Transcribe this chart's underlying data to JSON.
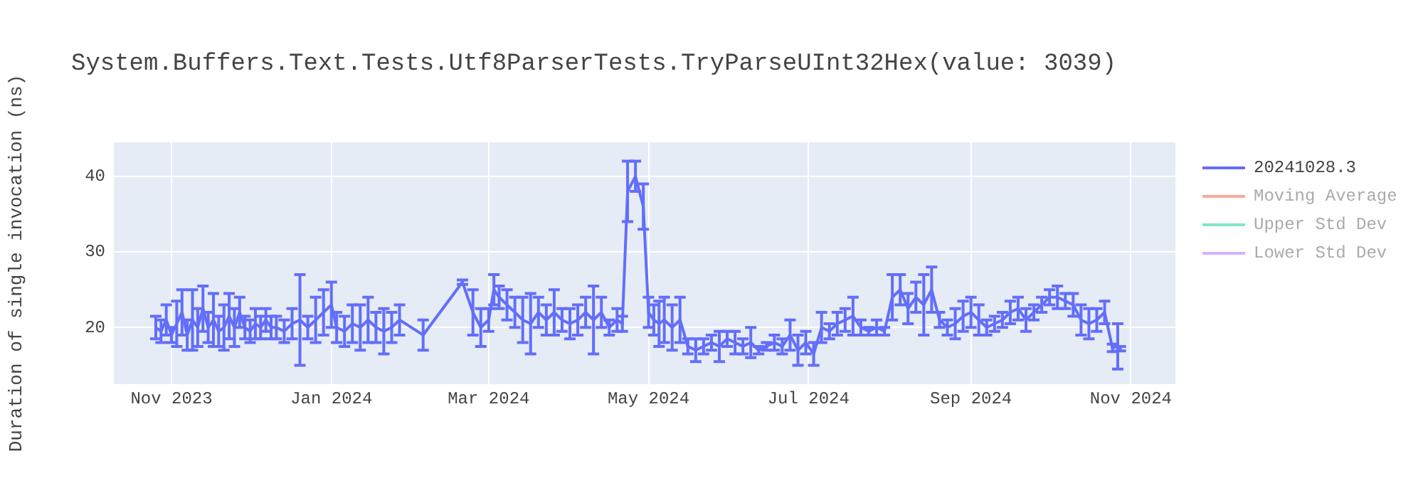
{
  "chart_data": {
    "type": "line",
    "title": "System.Buffers.Text.Tests.Utf8ParserTests.TryParseUInt32Hex(value: 3039)",
    "ylabel": "Duration of single invocation (ns)",
    "xlim": [
      "2023-10-10",
      "2024-11-18"
    ],
    "xticks": [
      {
        "value": "2023-11-01",
        "label": "Nov 2023"
      },
      {
        "value": "2024-01-01",
        "label": "Jan 2024"
      },
      {
        "value": "2024-03-01",
        "label": "Mar 2024"
      },
      {
        "value": "2024-05-01",
        "label": "May 2024"
      },
      {
        "value": "2024-07-01",
        "label": "Jul 2024"
      },
      {
        "value": "2024-09-01",
        "label": "Sep 2024"
      },
      {
        "value": "2024-11-01",
        "label": "Nov 2024"
      }
    ],
    "ylim": [
      12.5,
      44.5
    ],
    "yticks": [
      20,
      30,
      40
    ],
    "grid": true,
    "legend": "right",
    "marker": "none",
    "line_style": "solid",
    "x": [
      "2023-10-26",
      "2023-10-28",
      "2023-10-30",
      "2023-11-01",
      "2023-11-03",
      "2023-11-05",
      "2023-11-07",
      "2023-11-09",
      "2023-11-11",
      "2023-11-13",
      "2023-11-15",
      "2023-11-17",
      "2023-11-19",
      "2023-11-21",
      "2023-11-23",
      "2023-11-25",
      "2023-11-27",
      "2023-11-29",
      "2023-12-01",
      "2023-12-03",
      "2023-12-05",
      "2023-12-07",
      "2023-12-09",
      "2023-12-11",
      "2023-12-14",
      "2023-12-17",
      "2023-12-20",
      "2023-12-23",
      "2023-12-26",
      "2023-12-29",
      "2024-01-01",
      "2024-01-03",
      "2024-01-06",
      "2024-01-09",
      "2024-01-12",
      "2024-01-15",
      "2024-01-18",
      "2024-01-21",
      "2024-01-24",
      "2024-01-27",
      "2024-02-05",
      "2024-02-20",
      "2024-02-24",
      "2024-02-27",
      "2024-03-01",
      "2024-03-03",
      "2024-03-05",
      "2024-03-08",
      "2024-03-11",
      "2024-03-14",
      "2024-03-17",
      "2024-03-20",
      "2024-03-23",
      "2024-03-26",
      "2024-03-29",
      "2024-04-01",
      "2024-04-04",
      "2024-04-07",
      "2024-04-10",
      "2024-04-13",
      "2024-04-16",
      "2024-04-19",
      "2024-04-21",
      "2024-04-23",
      "2024-04-26",
      "2024-04-29",
      "2024-05-01",
      "2024-05-03",
      "2024-05-05",
      "2024-05-07",
      "2024-05-10",
      "2024-05-13",
      "2024-05-16",
      "2024-05-19",
      "2024-05-22",
      "2024-05-25",
      "2024-05-28",
      "2024-05-31",
      "2024-06-03",
      "2024-06-06",
      "2024-06-09",
      "2024-06-12",
      "2024-06-15",
      "2024-06-18",
      "2024-06-21",
      "2024-06-24",
      "2024-06-27",
      "2024-06-30",
      "2024-07-03",
      "2024-07-06",
      "2024-07-09",
      "2024-07-12",
      "2024-07-15",
      "2024-07-18",
      "2024-07-21",
      "2024-07-24",
      "2024-07-27",
      "2024-07-30",
      "2024-08-02",
      "2024-08-05",
      "2024-08-08",
      "2024-08-11",
      "2024-08-14",
      "2024-08-17",
      "2024-08-20",
      "2024-08-23",
      "2024-08-26",
      "2024-08-29",
      "2024-09-01",
      "2024-09-04",
      "2024-09-07",
      "2024-09-10",
      "2024-09-13",
      "2024-09-16",
      "2024-09-19",
      "2024-09-22",
      "2024-09-25",
      "2024-09-28",
      "2024-10-01",
      "2024-10-04",
      "2024-10-07",
      "2024-10-10",
      "2024-10-13",
      "2024-10-16",
      "2024-10-19",
      "2024-10-22",
      "2024-10-25",
      "2024-10-27",
      "2024-10-28"
    ],
    "series": [
      {
        "name": "20241028.3",
        "color": "#636efa",
        "values": [
          20,
          19.5,
          21,
          19,
          20.5,
          22,
          19,
          21,
          20,
          22.5,
          20,
          21,
          19.5,
          20,
          21.5,
          20,
          22,
          20,
          19.5,
          20.5,
          20,
          21,
          20,
          20,
          19.5,
          20.5,
          21,
          20,
          21,
          22,
          23,
          20,
          19.5,
          20.5,
          20,
          21,
          20,
          19.5,
          20,
          21,
          19,
          26,
          22,
          20,
          21,
          25,
          24,
          23,
          22,
          21,
          20.5,
          22,
          21,
          22,
          21,
          20.5,
          21,
          22,
          21,
          22,
          20,
          21,
          20.5,
          38,
          40,
          36,
          22,
          21,
          20.5,
          21,
          20,
          21,
          17.5,
          17,
          17.5,
          18,
          17.5,
          18.5,
          18,
          17.5,
          18,
          17,
          17.5,
          18,
          17.5,
          19,
          17,
          18,
          16.5,
          20,
          19.5,
          20.5,
          21,
          21.5,
          20,
          19.5,
          20,
          19.5,
          24,
          25,
          22.5,
          24,
          23,
          25,
          21,
          20,
          20.5,
          21.5,
          22,
          21,
          20,
          20.5,
          21,
          22,
          22.5,
          21,
          22,
          23,
          24,
          24,
          23.5,
          23,
          21,
          20.5,
          21,
          22,
          17.3,
          17.5,
          17.2
        ],
        "errors": [
          1.5,
          1.5,
          2,
          1,
          3,
          3,
          2,
          4,
          2.5,
          3,
          2,
          3.5,
          2,
          3,
          3,
          2.5,
          2,
          1.5,
          1.5,
          2,
          1.5,
          1.5,
          1.5,
          1.5,
          1.5,
          2,
          6,
          1.5,
          3,
          3,
          3,
          2,
          2,
          2.5,
          3,
          3,
          2,
          3,
          2,
          2,
          2,
          0.3,
          3,
          2.5,
          1.5,
          2,
          1.5,
          2,
          2,
          3,
          4,
          2,
          2,
          3,
          1.5,
          2,
          2,
          2,
          4.5,
          2,
          1,
          1.5,
          1,
          4,
          2,
          3,
          2,
          2,
          3,
          3,
          3,
          3,
          1,
          1.5,
          1,
          1,
          2,
          1,
          1.5,
          1,
          2,
          0.5,
          0.5,
          1,
          1,
          2,
          2,
          1.5,
          1.5,
          2,
          1,
          1.5,
          1.5,
          2.5,
          1,
          0.5,
          1,
          0.5,
          3,
          2,
          2,
          2,
          4,
          3,
          1,
          1,
          2,
          2,
          2,
          2,
          1,
          1,
          1,
          1.5,
          1.5,
          1.5,
          1,
          1,
          1,
          1.5,
          1,
          1.5,
          2,
          2,
          1.5,
          1.5,
          0.5,
          3,
          0.3
        ]
      },
      {
        "name": "Moving Average",
        "color": "#ef553b",
        "values": [
          null,
          null,
          null,
          null,
          null,
          null,
          null,
          null,
          null,
          null,
          null,
          null,
          null,
          null,
          null,
          null,
          null,
          null,
          null,
          null,
          null,
          null,
          null,
          null,
          null,
          null,
          null,
          null,
          null,
          null,
          null,
          null,
          null,
          null,
          null,
          null,
          null,
          null,
          null,
          null,
          null,
          null,
          null,
          null,
          null,
          null,
          null,
          null,
          null,
          null,
          null,
          null,
          null,
          null,
          null,
          null,
          null,
          null,
          null,
          null,
          null,
          null,
          null,
          null,
          null,
          null,
          null,
          null,
          null,
          null,
          null,
          null,
          null,
          null,
          null,
          null,
          null,
          null,
          null,
          null,
          null,
          null,
          null,
          null,
          null,
          null,
          null,
          null,
          null,
          null,
          null,
          null,
          null,
          null,
          null,
          null,
          null,
          null,
          null,
          null,
          null,
          null,
          null,
          null,
          null,
          null,
          null,
          null,
          null,
          null,
          null,
          null,
          null,
          null,
          null,
          null,
          null,
          null,
          null,
          null,
          null,
          null,
          null,
          null,
          null,
          null,
          null,
          null,
          null
        ]
      },
      {
        "name": "Upper Std Dev",
        "color": "#00cc96",
        "values": [
          null,
          null,
          null,
          null,
          null,
          null,
          null,
          null,
          null,
          null,
          null,
          null,
          null,
          null,
          null,
          null,
          null,
          null,
          null,
          null,
          null,
          null,
          null,
          null,
          null,
          null,
          null,
          null,
          null,
          null,
          null,
          null,
          null,
          null,
          null,
          null,
          null,
          null,
          null,
          null,
          null,
          null,
          null,
          null,
          null,
          null,
          null,
          null,
          null,
          null,
          null,
          null,
          null,
          null,
          null,
          null,
          null,
          null,
          null,
          null,
          null,
          null,
          null,
          null,
          null,
          null,
          null,
          null,
          null,
          null,
          null,
          null,
          null,
          null,
          null,
          null,
          null,
          null,
          null,
          null,
          null,
          null,
          null,
          null,
          null,
          null,
          null,
          null,
          null,
          null,
          null,
          null,
          null,
          null,
          null,
          null,
          null,
          null,
          null,
          null,
          null,
          null,
          null,
          null,
          null,
          null,
          null,
          null,
          null,
          null,
          null,
          null,
          null,
          null,
          null,
          null,
          null,
          null,
          null,
          null,
          null,
          null,
          null,
          null,
          null,
          null,
          null,
          null,
          null
        ]
      },
      {
        "name": "Lower Std Dev",
        "color": "#ab63fa",
        "values": [
          null,
          null,
          null,
          null,
          null,
          null,
          null,
          null,
          null,
          null,
          null,
          null,
          null,
          null,
          null,
          null,
          null,
          null,
          null,
          null,
          null,
          null,
          null,
          null,
          null,
          null,
          null,
          null,
          null,
          null,
          null,
          null,
          null,
          null,
          null,
          null,
          null,
          null,
          null,
          null,
          null,
          null,
          null,
          null,
          null,
          null,
          null,
          null,
          null,
          null,
          null,
          null,
          null,
          null,
          null,
          null,
          null,
          null,
          null,
          null,
          null,
          null,
          null,
          null,
          null,
          null,
          null,
          null,
          null,
          null,
          null,
          null,
          null,
          null,
          null,
          null,
          null,
          null,
          null,
          null,
          null,
          null,
          null,
          null,
          null,
          null,
          null,
          null,
          null,
          null,
          null,
          null,
          null,
          null,
          null,
          null,
          null,
          null,
          null,
          null,
          null,
          null,
          null,
          null,
          null,
          null,
          null,
          null,
          null,
          null,
          null,
          null,
          null,
          null,
          null,
          null,
          null,
          null,
          null,
          null,
          null,
          null,
          null,
          null,
          null,
          null,
          null,
          null,
          null
        ]
      }
    ]
  }
}
